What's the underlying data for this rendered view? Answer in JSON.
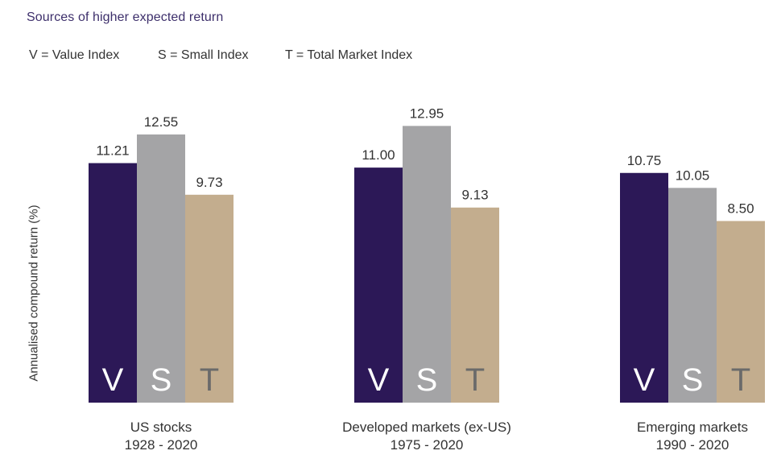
{
  "subtitle": "Sources of higher expected return",
  "legend": [
    {
      "text": "V = Value Index"
    },
    {
      "text": "S = Small Index"
    },
    {
      "text": "T = Total Market Index"
    }
  ],
  "colors": {
    "V": "#2c1857",
    "S": "#a4a4a6",
    "T": "#c3ad8e",
    "text": "#333333",
    "letter_dark": "#ffffff",
    "letter_light": "#6a6a6a"
  },
  "chart_data": {
    "type": "bar",
    "ylabel": "Annualised compound return (%)",
    "xlabel": "",
    "grid": false,
    "ylim": [
      0,
      12.55
    ],
    "series_letters": [
      "V",
      "S",
      "T"
    ],
    "groups": [
      {
        "name": "US stocks",
        "period": "1928 - 2020",
        "values": [
          11.21,
          12.55,
          9.73
        ],
        "labels": [
          "11.21",
          "12.55",
          "9.73"
        ]
      },
      {
        "name": "Developed markets (ex-US)",
        "period": "1975 - 2020",
        "values": [
          11.0,
          12.95,
          9.13
        ],
        "labels": [
          "11.00",
          "12.95",
          "9.13"
        ]
      },
      {
        "name": "Emerging markets",
        "period": "1990 - 2020",
        "values": [
          10.75,
          10.05,
          8.5
        ],
        "labels": [
          "10.75",
          "10.05",
          "8.50"
        ]
      }
    ]
  }
}
